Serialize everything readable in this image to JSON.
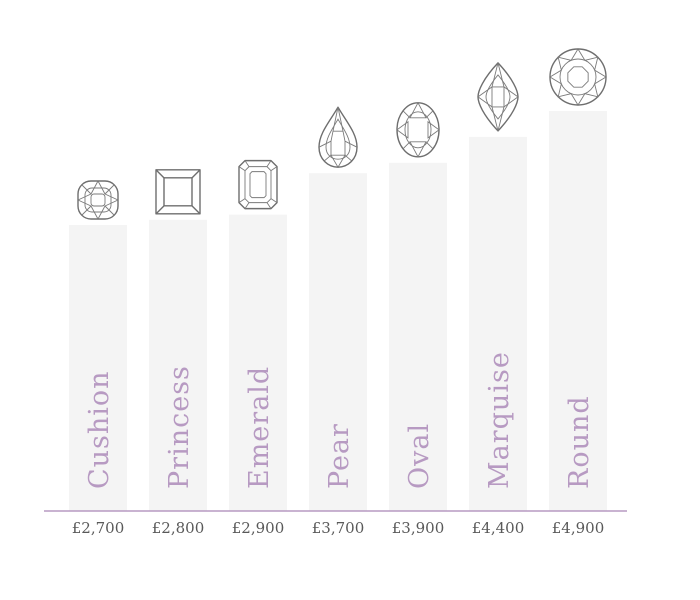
{
  "chart_data": {
    "type": "bar",
    "categories": [
      "Cushion",
      "Princess",
      "Emerald",
      "Pear",
      "Oval",
      "Marquise",
      "Round"
    ],
    "values": [
      2700,
      2800,
      2900,
      3700,
      3900,
      4400,
      4900
    ],
    "value_labels": [
      "£2,700",
      "£2,800",
      "£2,900",
      "£3,700",
      "£3,900",
      "£4,400",
      "£4,900"
    ],
    "icons": [
      "cushion-cut-icon",
      "princess-cut-icon",
      "emerald-cut-icon",
      "pear-cut-icon",
      "oval-cut-icon",
      "marquise-cut-icon",
      "round-cut-icon"
    ],
    "title": "",
    "xlabel": "",
    "ylabel": "",
    "ylim": [
      0,
      5500
    ],
    "grid": false,
    "legend": "none",
    "colors": {
      "bar": "#f4f4f4",
      "axis": "#b79ac2",
      "category_label": "#b79ac2",
      "value_label": "#595959",
      "icon_stroke": "#6e6e6e"
    }
  }
}
